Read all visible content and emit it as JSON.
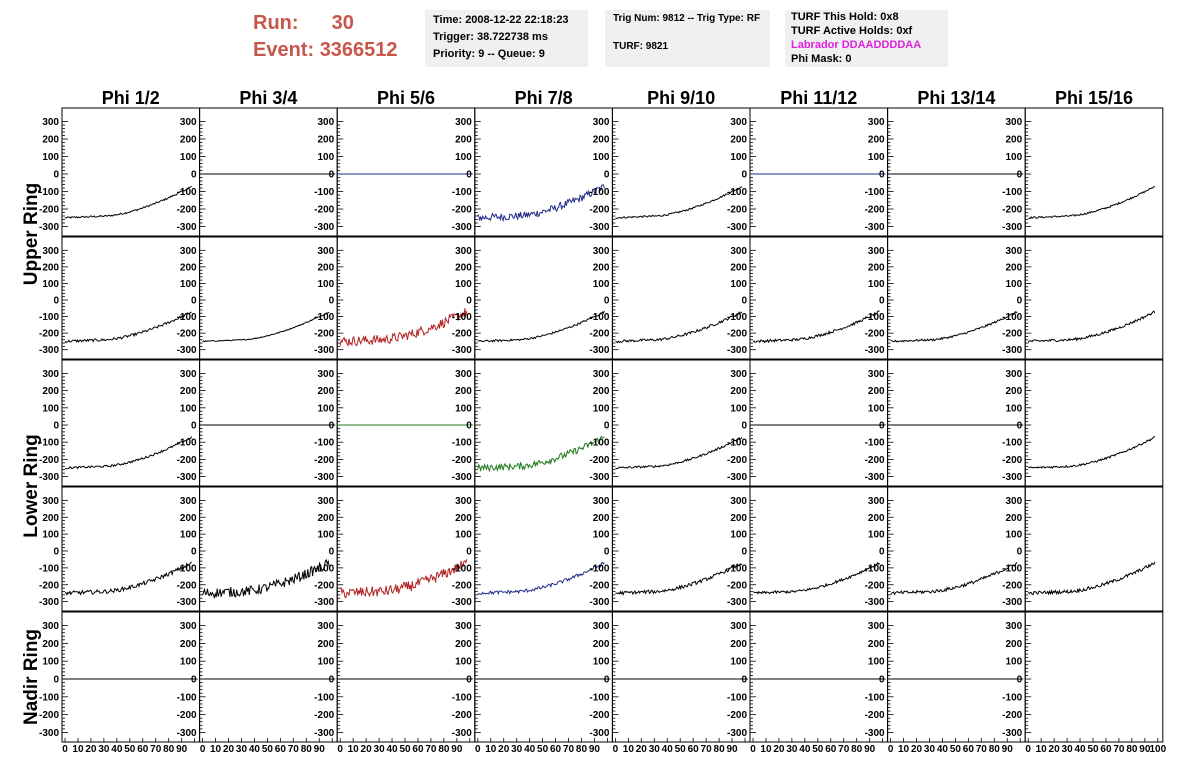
{
  "header": {
    "run_label": "Run:",
    "run_value": "30",
    "event_label": "Event:",
    "event_value": "3366512"
  },
  "info_box_1": {
    "time": "Time: 2008-12-22 22:18:23",
    "trigger": "Trigger: 38.722738 ms",
    "priority": "Priority: 9 -- Queue: 9"
  },
  "info_box_2": {
    "trig": "Trig Num: 9812 -- Trig Type: RF",
    "turf": "TURF: 9821"
  },
  "info_box_3": {
    "hold": "TURF This Hold: 0x8",
    "active": "TURF Active Holds: 0xf",
    "labrador": "Labrador DDAADDDDAA",
    "phimask": "Phi Mask: 0"
  },
  "chart_data": {
    "type": "line",
    "columns": [
      "Phi 1/2",
      "Phi 3/4",
      "Phi 5/6",
      "Phi 7/8",
      "Phi 9/10",
      "Phi 11/12",
      "Phi 13/14",
      "Phi 15/16"
    ],
    "rings": [
      "Upper Ring",
      "Lower Ring",
      "Nadir Ring"
    ],
    "ylim": [
      -320,
      320
    ],
    "xlim": [
      0,
      100
    ],
    "ytick_labels": [
      "300",
      "200",
      "100",
      "0",
      "-100",
      "-200",
      "-300"
    ],
    "xtick_labels": [
      "0",
      "10",
      "20",
      "30",
      "40",
      "50",
      "60",
      "70",
      "80",
      "90",
      "100"
    ],
    "colors": {
      "black": "#000000",
      "red": "#b22222",
      "blue": "#1f2a8a",
      "green": "#1e7a1e"
    },
    "panels": [
      [
        "trend:black:5",
        "flat:black",
        "flat:blue",
        "trend:blue:22",
        "trend:black:5",
        "flat:blue",
        "flat:black",
        "trend:black:5"
      ],
      [
        "trend:black:8",
        "trend:black:3",
        "trend:red:30",
        "trend:black:6",
        "trend:black:8",
        "trend:black:8",
        "trend:black:6",
        "trend:black:8"
      ],
      [
        "trend:black:6",
        "flat:black",
        "flat:green",
        "trend:green:20",
        "trend:black:6",
        "flat:black",
        "flat:black",
        "trend:black:6"
      ],
      [
        "trend:black:12",
        "trend:black:30",
        "trend:red:32",
        "trend:blue:10",
        "trend:black:10",
        "trend:black:8",
        "trend:black:10",
        "trend:black:10"
      ],
      [
        "flat:black",
        "flat:black",
        "flat:black",
        "flat:black",
        "flat:black",
        "flat:black",
        "flat:black",
        "none"
      ]
    ]
  }
}
